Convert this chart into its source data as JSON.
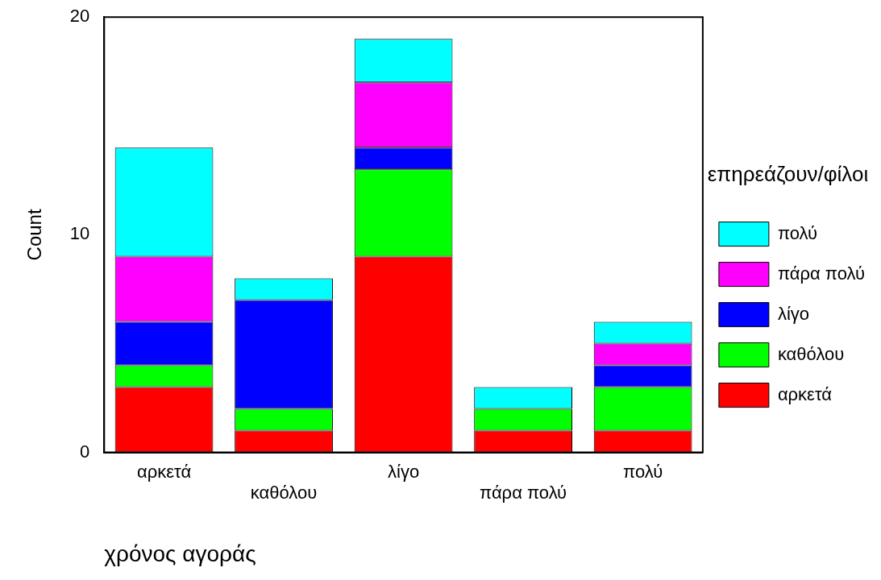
{
  "chart_data": {
    "type": "bar",
    "stacked": true,
    "categories": [
      "αρκετά",
      "καθόλου",
      "λίγο",
      "πάρα πολύ",
      "πολύ"
    ],
    "xlabel": "χρόνος αγοράς",
    "ylabel": "Count",
    "legend_title": "επηρεάζουν/φίλοι",
    "legend": "right",
    "ylim": [
      0,
      20
    ],
    "yticks": [
      0,
      10,
      20
    ],
    "grid": false,
    "series": [
      {
        "name": "αρκετά",
        "color": "#ff0000",
        "values": [
          3,
          1,
          9,
          1,
          1
        ]
      },
      {
        "name": "καθόλου",
        "color": "#00ff00",
        "values": [
          1,
          1,
          4,
          1,
          2
        ]
      },
      {
        "name": "λίγο",
        "color": "#0000ff",
        "values": [
          2,
          5,
          1,
          0,
          1
        ]
      },
      {
        "name": "πάρα πολύ",
        "color": "#ff00ff",
        "values": [
          3,
          0,
          3,
          0,
          1
        ]
      },
      {
        "name": "πολύ",
        "color": "#00ffff",
        "values": [
          5,
          1,
          2,
          1,
          1
        ]
      }
    ]
  }
}
